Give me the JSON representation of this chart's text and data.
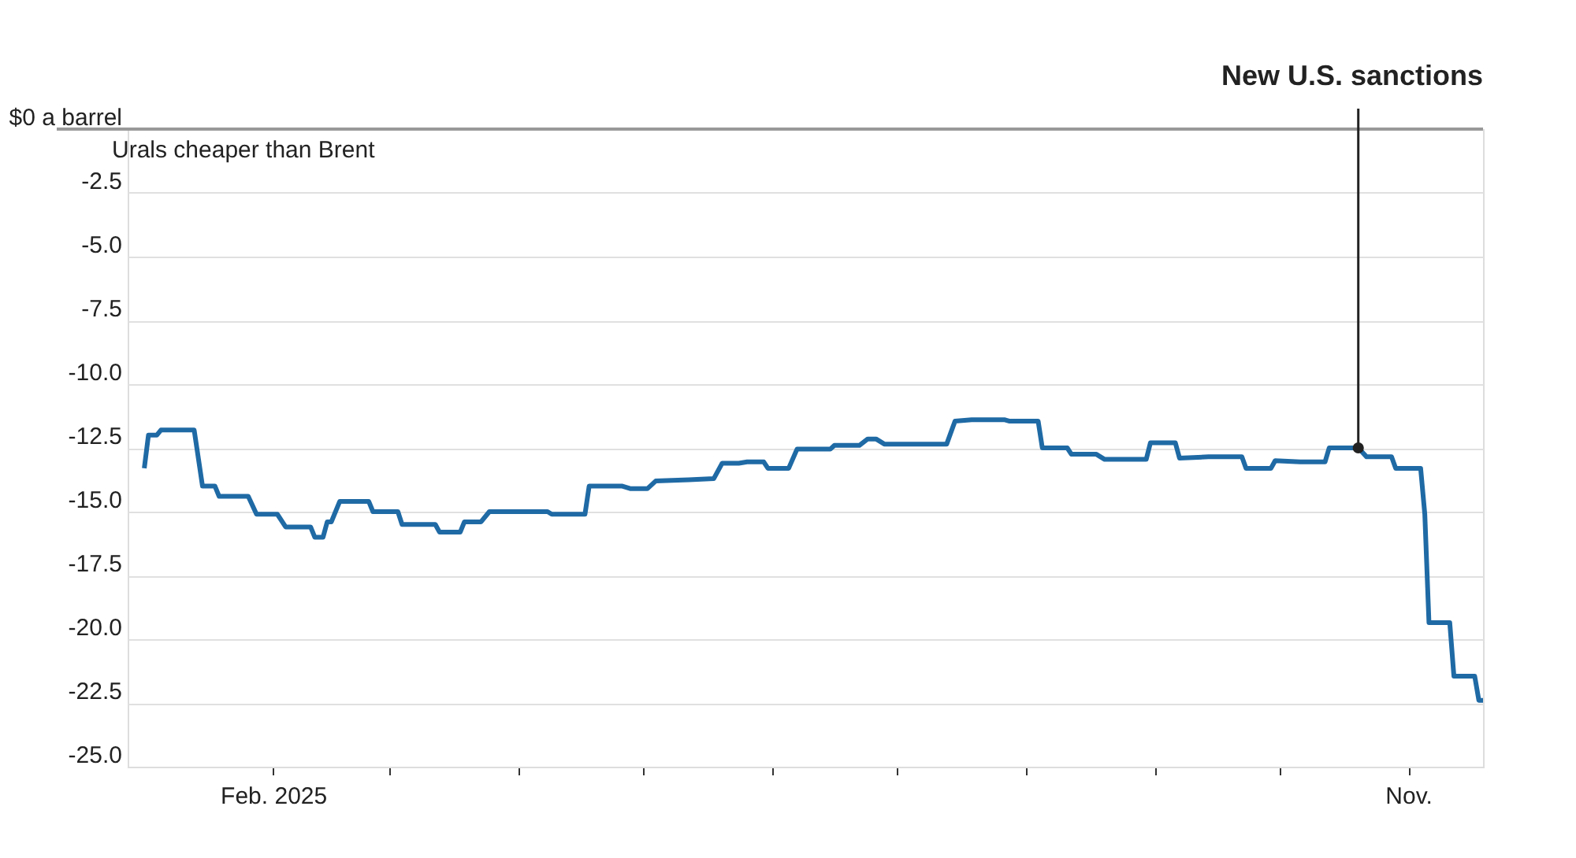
{
  "chart_data": {
    "type": "line",
    "annotations": [
      "Urals cheaper than Brent"
    ],
    "x": [
      "2025-01-01",
      "2025-01-02",
      "2025-01-04",
      "2025-01-05",
      "2025-01-13",
      "2025-01-15",
      "2025-01-18",
      "2025-01-19",
      "2025-01-26",
      "2025-01-28",
      "2025-02-02",
      "2025-02-04",
      "2025-02-10",
      "2025-02-11",
      "2025-02-13",
      "2025-02-14",
      "2025-02-15",
      "2025-02-17",
      "2025-02-24",
      "2025-02-25",
      "2025-03-03",
      "2025-03-04",
      "2025-03-12",
      "2025-03-13",
      "2025-03-18",
      "2025-03-19",
      "2025-03-23",
      "2025-03-25",
      "2025-04-08",
      "2025-04-09",
      "2025-04-17",
      "2025-04-18",
      "2025-04-26",
      "2025-04-28",
      "2025-05-02",
      "2025-05-04",
      "2025-05-12",
      "2025-05-18",
      "2025-05-20",
      "2025-05-24",
      "2025-05-26",
      "2025-05-30",
      "2025-05-31",
      "2025-06-05",
      "2025-06-07",
      "2025-06-15",
      "2025-06-16",
      "2025-06-22",
      "2025-06-24",
      "2025-06-26",
      "2025-06-28",
      "2025-07-13",
      "2025-07-15",
      "2025-07-19",
      "2025-07-27",
      "2025-07-28",
      "2025-08-04",
      "2025-08-05",
      "2025-08-11",
      "2025-08-12",
      "2025-08-18",
      "2025-08-20",
      "2025-08-30",
      "2025-08-31",
      "2025-09-06",
      "2025-09-07",
      "2025-09-14",
      "2025-09-22",
      "2025-09-23",
      "2025-09-29",
      "2025-09-30",
      "2025-10-06",
      "2025-10-12",
      "2025-10-13",
      "2025-10-20",
      "2025-10-22",
      "2025-10-28",
      "2025-10-29",
      "2025-11-04",
      "2025-11-05",
      "2025-11-06",
      "2025-11-11",
      "2025-11-12",
      "2025-11-17",
      "2025-11-18",
      "2025-11-19"
    ],
    "series": [
      {
        "color": "#1f6aa5",
        "values": [
          -13.3,
          -12.0,
          -12.0,
          -11.8,
          -11.8,
          -14.0,
          -14.0,
          -14.4,
          -14.4,
          -15.1,
          -15.1,
          -15.6,
          -15.6,
          -16.0,
          -16.0,
          -15.4,
          -15.4,
          -14.6,
          -14.6,
          -15.0,
          -15.0,
          -15.5,
          -15.5,
          -15.8,
          -15.8,
          -15.4,
          -15.4,
          -15.0,
          -15.0,
          -15.1,
          -15.1,
          -14.0,
          -14.0,
          -14.1,
          -14.1,
          -13.8,
          -13.75,
          -13.7,
          -13.1,
          -13.1,
          -13.05,
          -13.05,
          -13.3,
          -13.3,
          -12.55,
          -12.55,
          -12.4,
          -12.4,
          -12.15,
          -12.15,
          -12.35,
          -12.35,
          -11.45,
          -11.4,
          -11.4,
          -11.45,
          -11.45,
          -12.5,
          -12.5,
          -12.75,
          -12.75,
          -12.95,
          -12.95,
          -12.3,
          -12.3,
          -12.9,
          -12.85,
          -12.85,
          -13.3,
          -13.3,
          -13.0,
          -13.05,
          -13.05,
          -12.5,
          -12.5,
          -12.85,
          -12.85,
          -13.3,
          -13.3,
          -15.1,
          -19.35,
          -19.35,
          -21.45,
          -21.45,
          -22.4,
          -22.4
        ]
      }
    ],
    "xlim": [
      "2024-12-28",
      "2025-11-19"
    ],
    "xticks": [
      {
        "value": "2025-02-01",
        "label": "Feb. 2025"
      },
      {
        "value": "2025-03-01",
        "label": null
      },
      {
        "value": "2025-04-01",
        "label": null
      },
      {
        "value": "2025-05-01",
        "label": null
      },
      {
        "value": "2025-06-01",
        "label": null
      },
      {
        "value": "2025-07-01",
        "label": null
      },
      {
        "value": "2025-08-01",
        "label": null
      },
      {
        "value": "2025-09-01",
        "label": null
      },
      {
        "value": "2025-10-01",
        "label": null
      },
      {
        "value": "2025-11-01",
        "label": "Nov."
      }
    ],
    "ylim": [
      -25,
      0
    ],
    "yticks": [
      {
        "value": 0,
        "label": "$0 a barrel"
      },
      {
        "value": -2.5,
        "label": "-2.5"
      },
      {
        "value": -5,
        "label": "-5.0"
      },
      {
        "value": -7.5,
        "label": "-7.5"
      },
      {
        "value": -10,
        "label": "-10.0"
      },
      {
        "value": -12.5,
        "label": "-12.5"
      },
      {
        "value": -15,
        "label": "-15.0"
      },
      {
        "value": -17.5,
        "label": "-17.5"
      },
      {
        "value": -20,
        "label": "-20.0"
      },
      {
        "value": -22.5,
        "label": "-22.5"
      },
      {
        "value": -25,
        "label": "-25.0"
      }
    ],
    "grid": "y",
    "ref_lines": [
      {
        "axis": "x",
        "value": "2025-10-20",
        "label": "New U.S. sanctions",
        "color": "#222222"
      }
    ]
  }
}
